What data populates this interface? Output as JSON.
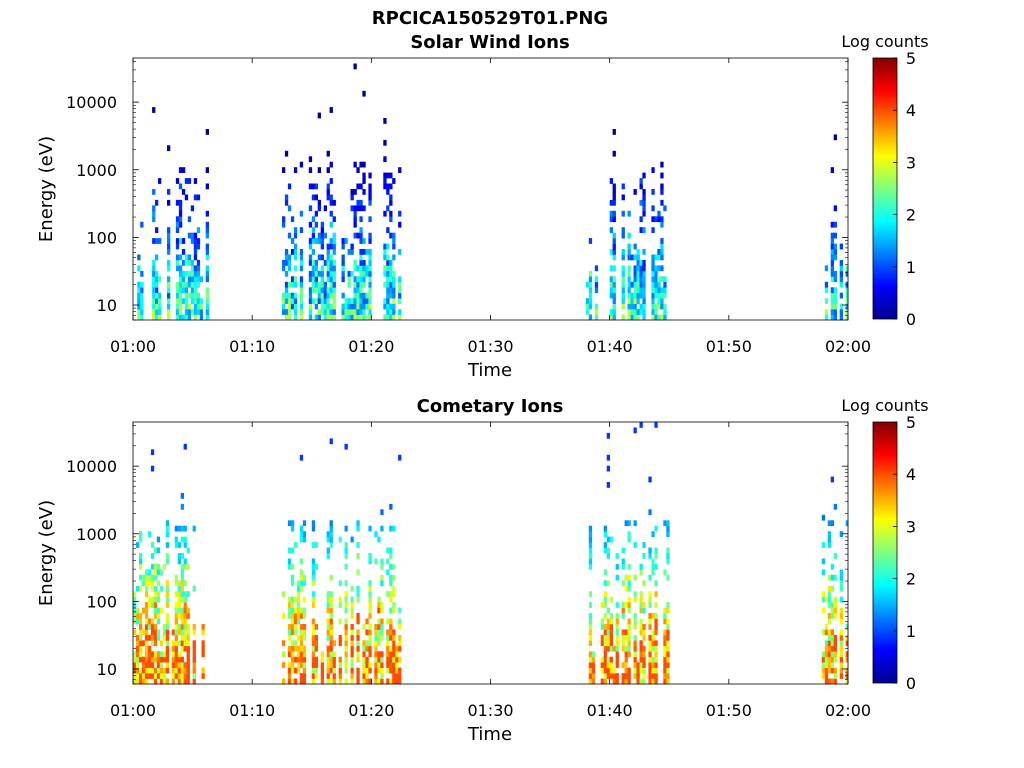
{
  "figure": {
    "title": "RPCICA150529T01.PNG"
  },
  "chart_data": [
    {
      "type": "heatmap",
      "title": "Solar Wind Ions",
      "xlabel": "Time",
      "ylabel": "Energy (eV)",
      "y_scale": "log",
      "ylim": [
        6,
        45000
      ],
      "x_ticks": [
        "01:00",
        "01:10",
        "01:20",
        "01:30",
        "01:40",
        "01:50",
        "02:00"
      ],
      "y_ticks": [
        "10",
        "100",
        "1000",
        "10000"
      ],
      "colorbar": {
        "label": "Log counts",
        "ticks": [
          "0",
          "1",
          "2",
          "3",
          "4",
          "5"
        ],
        "range": [
          0,
          5
        ],
        "colormap": "jet"
      },
      "activity_intervals_min": [
        [
          0.1,
          6.2
        ],
        [
          12.5,
          22.3
        ],
        [
          38.0,
          44.8
        ],
        [
          57.8,
          60.5
        ]
      ],
      "approx_peak_log_counts": 2.8
    },
    {
      "type": "heatmap",
      "title": "Cometary Ions",
      "xlabel": "Time",
      "ylabel": "Energy (eV)",
      "y_scale": "log",
      "ylim": [
        6,
        45000
      ],
      "x_ticks": [
        "01:00",
        "01:10",
        "01:20",
        "01:30",
        "01:40",
        "01:50",
        "02:00"
      ],
      "y_ticks": [
        "10",
        "100",
        "1000",
        "10000"
      ],
      "colorbar": {
        "label": "Log counts",
        "ticks": [
          "0",
          "1",
          "2",
          "3",
          "4",
          "5"
        ],
        "range": [
          0,
          5
        ],
        "colormap": "jet"
      },
      "activity_intervals_min": [
        [
          0.0,
          6.2
        ],
        [
          12.5,
          22.3
        ],
        [
          38.0,
          44.8
        ],
        [
          57.8,
          60.5
        ]
      ],
      "approx_peak_log_counts": 4.0
    }
  ]
}
